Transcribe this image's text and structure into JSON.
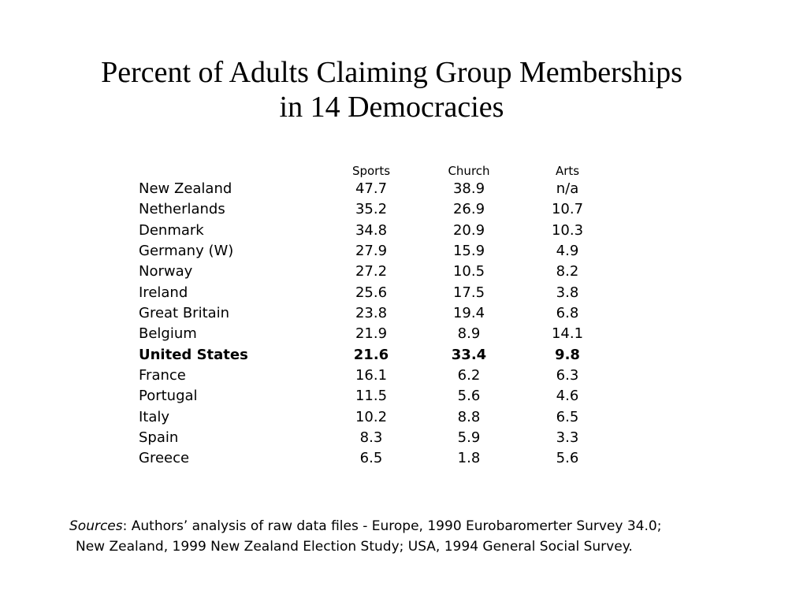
{
  "title": {
    "line1": "Percent of Adults Claiming Group Memberships",
    "line2": "in 14 Democracies"
  },
  "table": {
    "columns": [
      "Sports",
      "Church",
      "Arts"
    ],
    "rows": [
      {
        "country": "New Zealand",
        "sports": "47.7",
        "church": "38.9",
        "arts": "n/a"
      },
      {
        "country": "Netherlands",
        "sports": "35.2",
        "church": "26.9",
        "arts": "10.7"
      },
      {
        "country": "Denmark",
        "sports": "34.8",
        "church": "20.9",
        "arts": "10.3"
      },
      {
        "country": "Germany (W)",
        "sports": "27.9",
        "church": "15.9",
        "arts": "4.9"
      },
      {
        "country": "Norway",
        "sports": "27.2",
        "church": "10.5",
        "arts": "8.2"
      },
      {
        "country": "Ireland",
        "sports": "25.6",
        "church": "17.5",
        "arts": "3.8"
      },
      {
        "country": "Great Britain",
        "sports": "23.8",
        "church": "19.4",
        "arts": "6.8"
      },
      {
        "country": "Belgium",
        "sports": "21.9",
        "church": "8.9",
        "arts": "14.1"
      },
      {
        "country": "United States",
        "sports": "21.6",
        "church": "33.4",
        "arts": "9.8",
        "bold": true
      },
      {
        "country": "France",
        "sports": "16.1",
        "church": "6.2",
        "arts": "6.3"
      },
      {
        "country": "Portugal",
        "sports": "11.5",
        "church": "5.6",
        "arts": "4.6"
      },
      {
        "country": "Italy",
        "sports": "10.2",
        "church": "8.8",
        "arts": "6.5"
      },
      {
        "country": "Spain",
        "sports": "8.3",
        "church": "5.9",
        "arts": "3.3"
      },
      {
        "country": "Greece",
        "sports": "6.5",
        "church": "1.8",
        "arts": "5.6"
      }
    ]
  },
  "sources": {
    "label": "Sources",
    "line1_rest": ": Authors’ analysis of raw data files - Europe, 1990 Eurobaromerter Survey 34.0;",
    "line2": "New Zealand, 1999 New Zealand Election Study; USA, 1994 General Social Survey."
  }
}
